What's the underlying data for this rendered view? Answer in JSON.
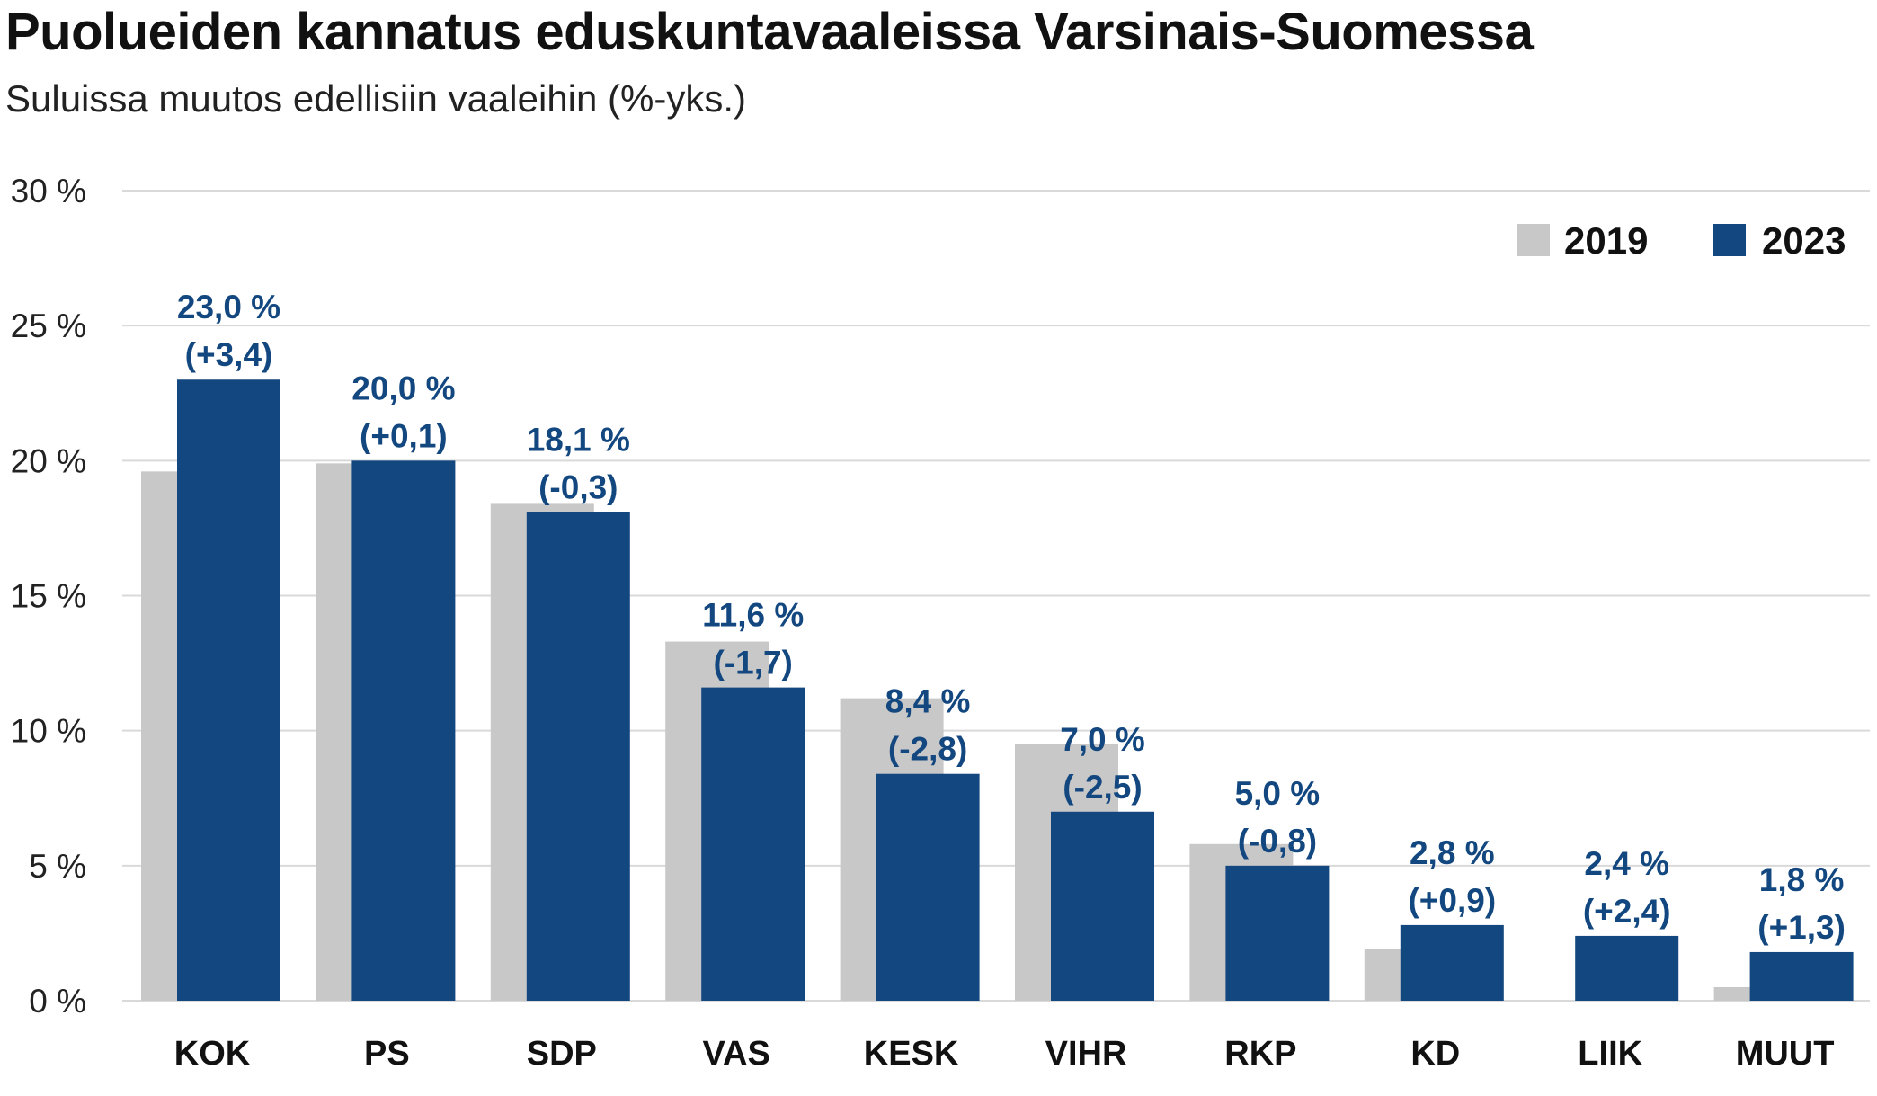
{
  "title": "Puolueiden kannatus eduskuntavaaleissa Varsinais-Suomessa",
  "subtitle": "Suluissa muutos edellisiin vaaleihin (%-yks.)",
  "colors": {
    "series_2019": "#c8c8c8",
    "series_2023": "#13477f",
    "grid": "#d9d9d9",
    "label": "#13477f"
  },
  "chart_data": {
    "type": "bar",
    "categories": [
      "KOK",
      "PS",
      "SDP",
      "VAS",
      "KESK",
      "VIHR",
      "RKP",
      "KD",
      "LIIK",
      "MUUT"
    ],
    "series": [
      {
        "name": "2019",
        "values": [
          19.6,
          19.9,
          18.4,
          13.3,
          11.2,
          9.5,
          5.8,
          1.9,
          0,
          0.5
        ]
      },
      {
        "name": "2023",
        "values": [
          23.0,
          20.0,
          18.1,
          11.6,
          8.4,
          7.0,
          5.0,
          2.8,
          2.4,
          1.8
        ]
      }
    ],
    "data_labels": [
      {
        "value": "23,0 %",
        "change": "(+3,4)"
      },
      {
        "value": "20,0 %",
        "change": "(+0,1)"
      },
      {
        "value": "18,1 %",
        "change": "(-0,3)"
      },
      {
        "value": "11,6 %",
        "change": "(-1,7)"
      },
      {
        "value": "8,4 %",
        "change": "(-2,8)"
      },
      {
        "value": "7,0 %",
        "change": "(-2,5)"
      },
      {
        "value": "5,0 %",
        "change": "(-0,8)"
      },
      {
        "value": "2,8 %",
        "change": "(+0,9)"
      },
      {
        "value": "2,4 %",
        "change": "(+2,4)"
      },
      {
        "value": "1,8 %",
        "change": "(+1,3)"
      }
    ],
    "y_ticks": [
      {
        "value": 0,
        "label": "0 %"
      },
      {
        "value": 5,
        "label": "5 %"
      },
      {
        "value": 10,
        "label": "10 %"
      },
      {
        "value": 15,
        "label": "15 %"
      },
      {
        "value": 20,
        "label": "20 %"
      },
      {
        "value": 25,
        "label": "25 %"
      },
      {
        "value": 30,
        "label": "30 %"
      }
    ],
    "ylim": [
      0,
      30
    ],
    "grid": true,
    "legend": "top-right"
  }
}
